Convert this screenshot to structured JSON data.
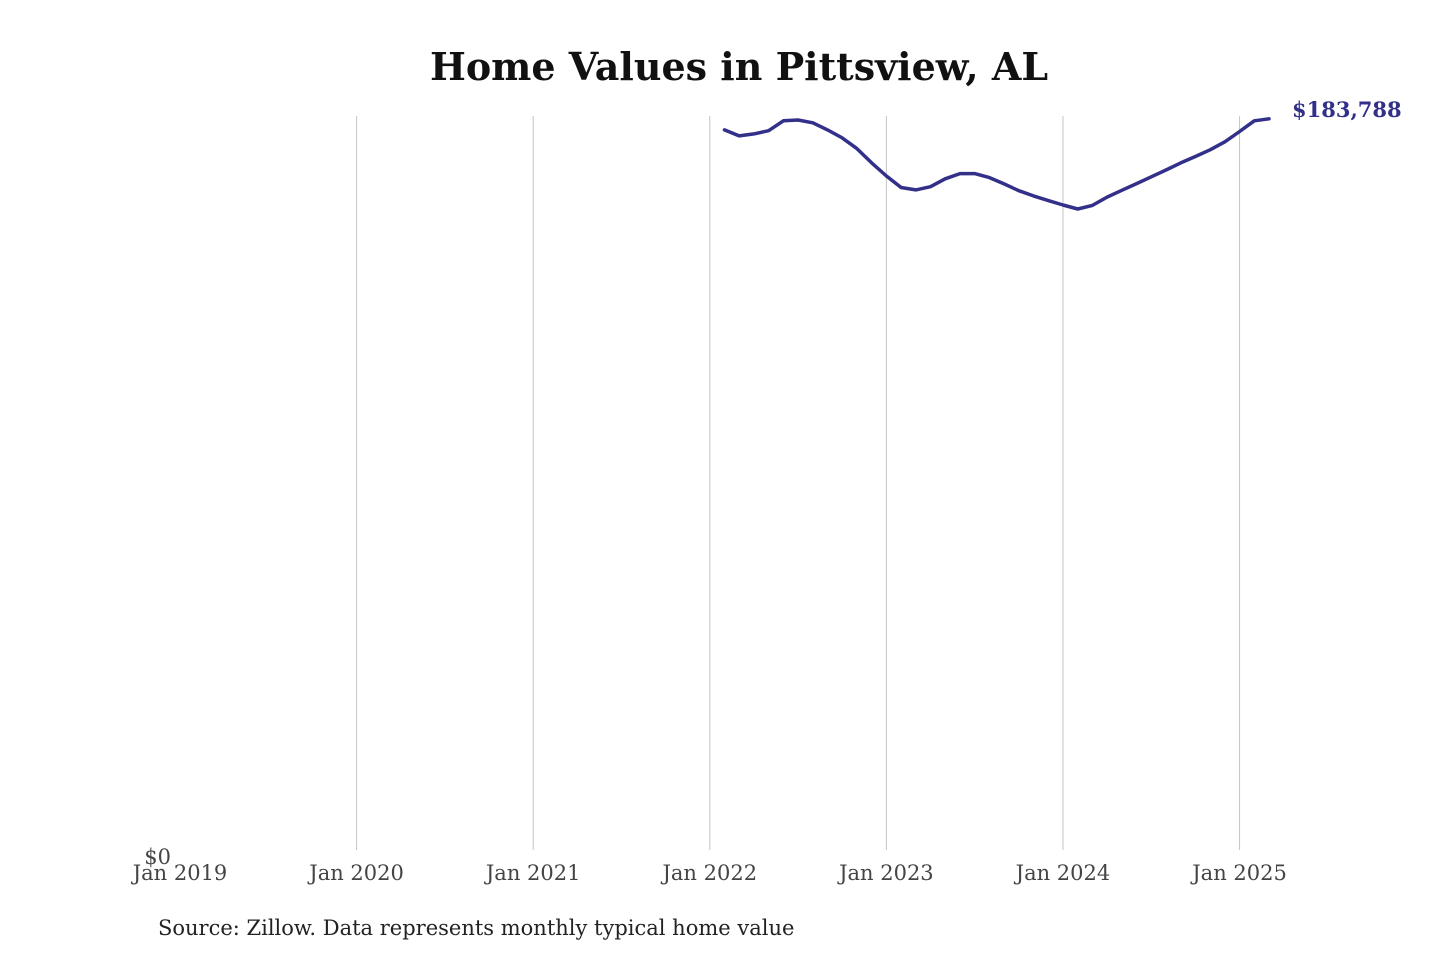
{
  "chart_data": {
    "type": "line",
    "title": "Home Values in Pittsview, AL",
    "source": "Source: Zillow. Data represents monthly typical home value",
    "xlabel": "",
    "ylabel": "",
    "x_ticks": [
      "Jan 2019",
      "Jan 2020",
      "Jan 2021",
      "Jan 2022",
      "Jan 2023",
      "Jan 2024",
      "Jan 2025"
    ],
    "y_ticks": [
      "$0"
    ],
    "xlim": [
      "2019-01",
      "2025-03"
    ],
    "ylim": [
      0,
      184000
    ],
    "grid": "vertical",
    "line_color": "#33308a",
    "end_label": "$183,788",
    "series": [
      {
        "x": [
          "2022-02",
          "2022-03",
          "2022-04",
          "2022-05",
          "2022-06",
          "2022-07",
          "2022-08",
          "2022-09",
          "2022-10",
          "2022-11",
          "2022-12",
          "2023-01",
          "2023-02",
          "2023-03",
          "2023-04",
          "2023-05",
          "2023-06",
          "2023-07",
          "2023-08",
          "2023-09",
          "2023-10",
          "2023-11",
          "2023-12",
          "2024-01",
          "2024-02",
          "2024-03",
          "2024-04",
          "2024-05",
          "2024-06",
          "2024-07",
          "2024-08",
          "2024-09",
          "2024-10",
          "2024-11",
          "2024-12",
          "2025-01",
          "2025-02",
          "2025-03"
        ],
        "values": [
          181000,
          179500,
          180000,
          180800,
          183300,
          183500,
          182800,
          181000,
          179000,
          176300,
          172700,
          169400,
          166500,
          165900,
          166700,
          168700,
          170000,
          170000,
          169000,
          167400,
          165700,
          164400,
          163200,
          162100,
          161100,
          162000,
          164100,
          165800,
          167500,
          169200,
          170900,
          172700,
          174300,
          176000,
          178000,
          180600,
          183300,
          183788
        ]
      }
    ]
  }
}
